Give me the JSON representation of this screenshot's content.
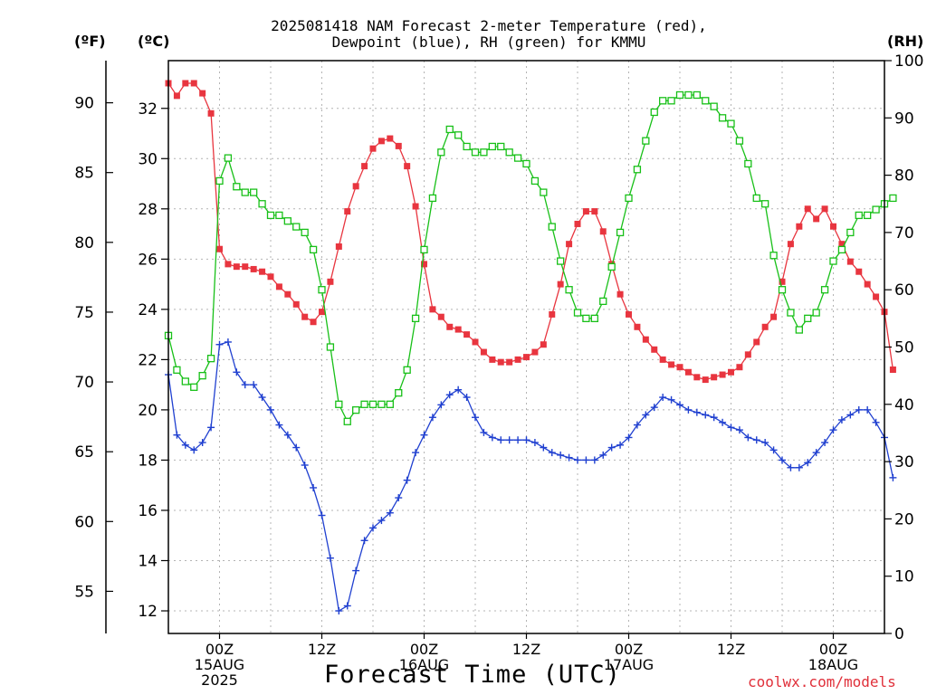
{
  "chart_data": {
    "type": "line",
    "title_line1": "2025081418 NAM Forecast 2-meter Temperature (red),",
    "title_line2": "Dewpoint (blue), RH (green) for KMMU",
    "units": {
      "left_outer": "(ºF)",
      "left_inner": "(ºC)",
      "right": "(RH)"
    },
    "xlabel": "Forecast Time (UTC)",
    "credit": "coolwx.com/models",
    "x_unit": "hours after 2025-08-14 18Z",
    "x_range": [
      0,
      84
    ],
    "x_ticks": [
      {
        "x": 6,
        "lines": [
          "00Z",
          "15AUG",
          "2025"
        ]
      },
      {
        "x": 18,
        "lines": [
          "12Z"
        ]
      },
      {
        "x": 30,
        "lines": [
          "00Z",
          "16AUG"
        ]
      },
      {
        "x": 42,
        "lines": [
          "12Z"
        ]
      },
      {
        "x": 54,
        "lines": [
          "00Z",
          "17AUG"
        ]
      },
      {
        "x": 66,
        "lines": [
          "12Z"
        ]
      },
      {
        "x": 78,
        "lines": [
          "00Z",
          "18AUG"
        ]
      }
    ],
    "y_celsius": {
      "range": [
        11.1,
        33.9
      ],
      "ticks": [
        12,
        14,
        16,
        18,
        20,
        22,
        24,
        26,
        28,
        30,
        32
      ]
    },
    "y_fahrenheit": {
      "ticks": [
        55,
        60,
        65,
        70,
        75,
        80,
        85,
        90
      ]
    },
    "y_rh": {
      "range": [
        0,
        100
      ],
      "ticks": [
        0,
        10,
        20,
        30,
        40,
        50,
        60,
        70,
        80,
        90,
        100
      ]
    },
    "grid": true,
    "series": [
      {
        "name": "Temperature",
        "color": "#e8353f",
        "marker": "filled-square",
        "axis": "celsius",
        "values": [
          33.0,
          32.5,
          33.0,
          33.0,
          32.6,
          31.8,
          26.4,
          25.8,
          25.7,
          25.7,
          25.6,
          25.5,
          25.3,
          24.9,
          24.6,
          24.2,
          23.7,
          23.5,
          23.9,
          25.1,
          26.5,
          27.9,
          28.9,
          29.7,
          30.4,
          30.7,
          30.8,
          30.5,
          29.7,
          28.1,
          25.8,
          24.0,
          23.7,
          23.3,
          23.2,
          23.0,
          22.7,
          22.3,
          22.0,
          21.9,
          21.9,
          22.0,
          22.1,
          22.3,
          22.6,
          23.8,
          25.0,
          26.6,
          27.4,
          27.9,
          27.9,
          27.1,
          25.8,
          24.6,
          23.8,
          23.3,
          22.8,
          22.4,
          22.0,
          21.8,
          21.7,
          21.5,
          21.3,
          21.2,
          21.3,
          21.4,
          21.5,
          21.7,
          22.2,
          22.7,
          23.3,
          23.7,
          25.1,
          26.6,
          27.3,
          28.0,
          27.6,
          28.0,
          27.3,
          26.6,
          25.9,
          25.5,
          25.0,
          24.5,
          23.9,
          21.6
        ]
      },
      {
        "name": "Dewpoint",
        "color": "#2040d0",
        "marker": "plus",
        "axis": "celsius",
        "values": [
          21.4,
          19.0,
          18.6,
          18.4,
          18.7,
          19.3,
          22.6,
          22.7,
          21.5,
          21.0,
          21.0,
          20.5,
          20.0,
          19.4,
          19.0,
          18.5,
          17.8,
          16.9,
          15.8,
          14.1,
          12.0,
          12.2,
          13.6,
          14.8,
          15.3,
          15.6,
          15.9,
          16.5,
          17.2,
          18.3,
          19.0,
          19.7,
          20.2,
          20.6,
          20.8,
          20.5,
          19.7,
          19.1,
          18.9,
          18.8,
          18.8,
          18.8,
          18.8,
          18.7,
          18.5,
          18.3,
          18.2,
          18.1,
          18.0,
          18.0,
          18.0,
          18.2,
          18.5,
          18.6,
          18.9,
          19.4,
          19.8,
          20.1,
          20.5,
          20.4,
          20.2,
          20.0,
          19.9,
          19.8,
          19.7,
          19.5,
          19.3,
          19.2,
          18.9,
          18.8,
          18.7,
          18.4,
          18.0,
          17.7,
          17.7,
          17.9,
          18.3,
          18.7,
          19.2,
          19.6,
          19.8,
          20.0,
          20.0,
          19.5,
          18.9,
          17.3
        ]
      },
      {
        "name": "RH",
        "color": "#18c018",
        "marker": "open-square",
        "axis": "rh",
        "values": [
          52,
          46,
          44,
          43,
          45,
          48,
          79,
          83,
          78,
          77,
          77,
          75,
          73,
          73,
          72,
          71,
          70,
          67,
          60,
          50,
          40,
          37,
          39,
          40,
          40,
          40,
          40,
          42,
          46,
          55,
          67,
          76,
          84,
          88,
          87,
          85,
          84,
          84,
          85,
          85,
          84,
          83,
          82,
          79,
          77,
          71,
          65,
          60,
          56,
          55,
          55,
          58,
          64,
          70,
          76,
          81,
          86,
          91,
          93,
          93,
          94,
          94,
          94,
          93,
          92,
          90,
          89,
          86,
          82,
          76,
          75,
          66,
          60,
          56,
          53,
          55,
          56,
          60,
          65,
          67,
          70,
          73,
          73,
          74,
          75,
          76
        ]
      }
    ]
  }
}
